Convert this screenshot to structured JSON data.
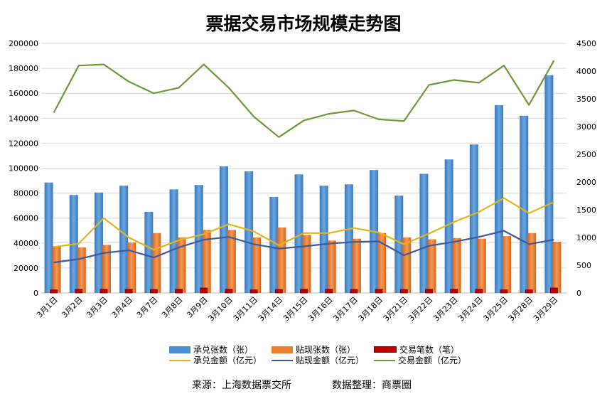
{
  "chart_data": {
    "type": "bar",
    "title": "票据交易市场规模走势图",
    "categories": [
      "3月1日",
      "3月2日",
      "3月3日",
      "3月4日",
      "3月7日",
      "3月8日",
      "3月9日",
      "3月10日",
      "3月11日",
      "3月14日",
      "3月15日",
      "3月16日",
      "3月17日",
      "3月18日",
      "3月21日",
      "3月22日",
      "3月23日",
      "3月24日",
      "3月25日",
      "3月28日",
      "3月29日"
    ],
    "y_left": {
      "min": 0,
      "max": 200000,
      "ticks": [
        "0",
        "20000",
        "40000",
        "60000",
        "80000",
        "100000",
        "120000",
        "140000",
        "160000",
        "180000",
        "200000"
      ]
    },
    "y_right": {
      "min": 0,
      "max": 4500,
      "ticks": [
        "0",
        "500",
        "1000",
        "1500",
        "2000",
        "2500",
        "3000",
        "3500",
        "4000",
        "4500"
      ]
    },
    "bar_series": [
      {
        "name": "承兑张数（张）",
        "color": "#4a8fd4",
        "axis": "left",
        "values": [
          88500,
          78500,
          80500,
          86000,
          65000,
          83000,
          86500,
          101500,
          97500,
          77000,
          95000,
          86000,
          87000,
          98500,
          78000,
          95500,
          107000,
          119000,
          150500,
          142000,
          174500
        ]
      },
      {
        "name": "贴现张数（张）",
        "color": "#ed7d31",
        "axis": "left",
        "values": [
          37500,
          36500,
          38500,
          40500,
          48000,
          44500,
          50500,
          50500,
          44500,
          52500,
          46500,
          42000,
          43500,
          48000,
          44500,
          43000,
          44000,
          43500,
          45500,
          48000,
          41000
        ]
      },
      {
        "name": "交易笔数（笔）",
        "color": "#c00000",
        "axis": "left",
        "values": [
          2500,
          3000,
          3000,
          3000,
          2800,
          3000,
          4000,
          3000,
          2500,
          2800,
          3000,
          3000,
          2800,
          3000,
          2800,
          3000,
          3000,
          3000,
          2500,
          2500,
          4000
        ]
      }
    ],
    "line_series": [
      {
        "name": "承兑金额（亿元）",
        "color": "#e3b51c",
        "axis": "right",
        "values": [
          830,
          890,
          1350,
          1000,
          780,
          950,
          1060,
          1240,
          1110,
          860,
          1080,
          1080,
          1170,
          1090,
          880,
          1070,
          1280,
          1460,
          1710,
          1440,
          1640
        ]
      },
      {
        "name": "贴现金额（亿元）",
        "color": "#3c5a9e",
        "axis": "right",
        "values": [
          550,
          610,
          720,
          770,
          640,
          820,
          960,
          1010,
          880,
          800,
          840,
          890,
          920,
          930,
          680,
          850,
          920,
          1010,
          1120,
          880,
          960
        ]
      },
      {
        "name": "交易金额（亿元）",
        "color": "#6c9a3a",
        "axis": "right",
        "values": [
          3250,
          4100,
          4120,
          3810,
          3600,
          3700,
          4120,
          3700,
          3180,
          2810,
          3110,
          3230,
          3290,
          3130,
          3100,
          3750,
          3840,
          3790,
          4100,
          3390,
          4190
        ]
      }
    ],
    "grid": true,
    "legend_position": "bottom"
  },
  "footer": {
    "source": "来源：上海数据票交所",
    "compiler": "数据整理：商票圈"
  }
}
